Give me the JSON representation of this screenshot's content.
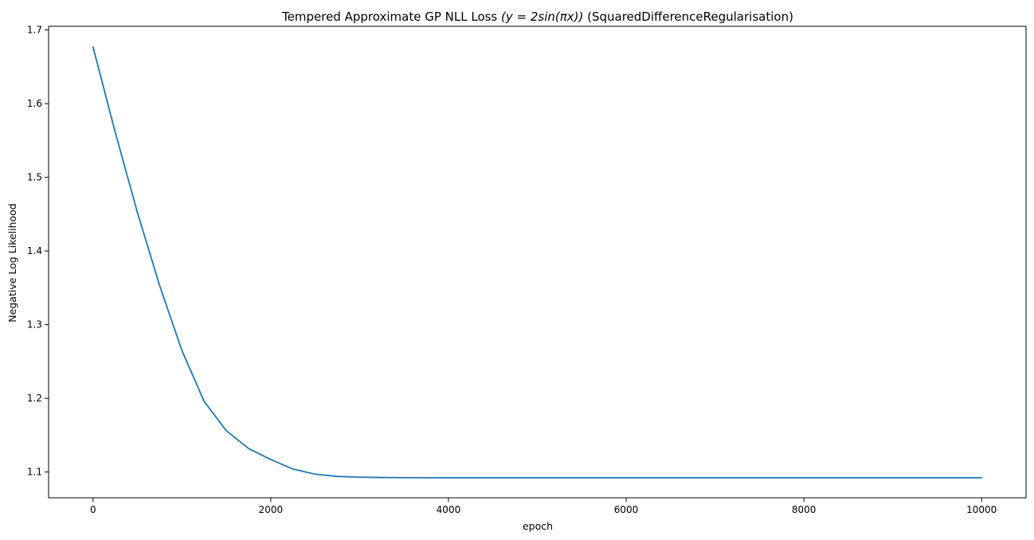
{
  "chart_data": {
    "type": "line",
    "title": "Tempered Approximate GP NLL Loss ",
    "title_math": "(y = 2sin(πx))",
    "title_suffix": " (SquaredDifferenceRegularisation)",
    "xlabel": "epoch",
    "ylabel": "Negative Log Likelihood",
    "xlim": [
      -500,
      10500
    ],
    "ylim": [
      1.065,
      1.705
    ],
    "xticks": [
      0,
      2000,
      4000,
      6000,
      8000,
      10000
    ],
    "xtick_labels": [
      "0",
      "2000",
      "4000",
      "6000",
      "8000",
      "10000"
    ],
    "yticks": [
      1.1,
      1.2,
      1.3,
      1.4,
      1.5,
      1.6,
      1.7
    ],
    "ytick_labels": [
      "1.1",
      "1.2",
      "1.3",
      "1.4",
      "1.5",
      "1.6",
      "1.7"
    ],
    "grid": false,
    "legend": "none",
    "series": [
      {
        "color": "#1f77b4",
        "x": [
          0,
          250,
          500,
          750,
          1000,
          1250,
          1500,
          1750,
          2000,
          2250,
          2500,
          2750,
          3000,
          3250,
          3500,
          4000,
          5000,
          6000,
          7000,
          8000,
          9000,
          10000
        ],
        "y": [
          1.677,
          1.561,
          1.452,
          1.353,
          1.265,
          1.196,
          1.156,
          1.132,
          1.117,
          1.104,
          1.097,
          1.094,
          1.093,
          1.0925,
          1.0923,
          1.0922,
          1.0922,
          1.0922,
          1.0922,
          1.0922,
          1.0922,
          1.0922
        ]
      }
    ]
  }
}
